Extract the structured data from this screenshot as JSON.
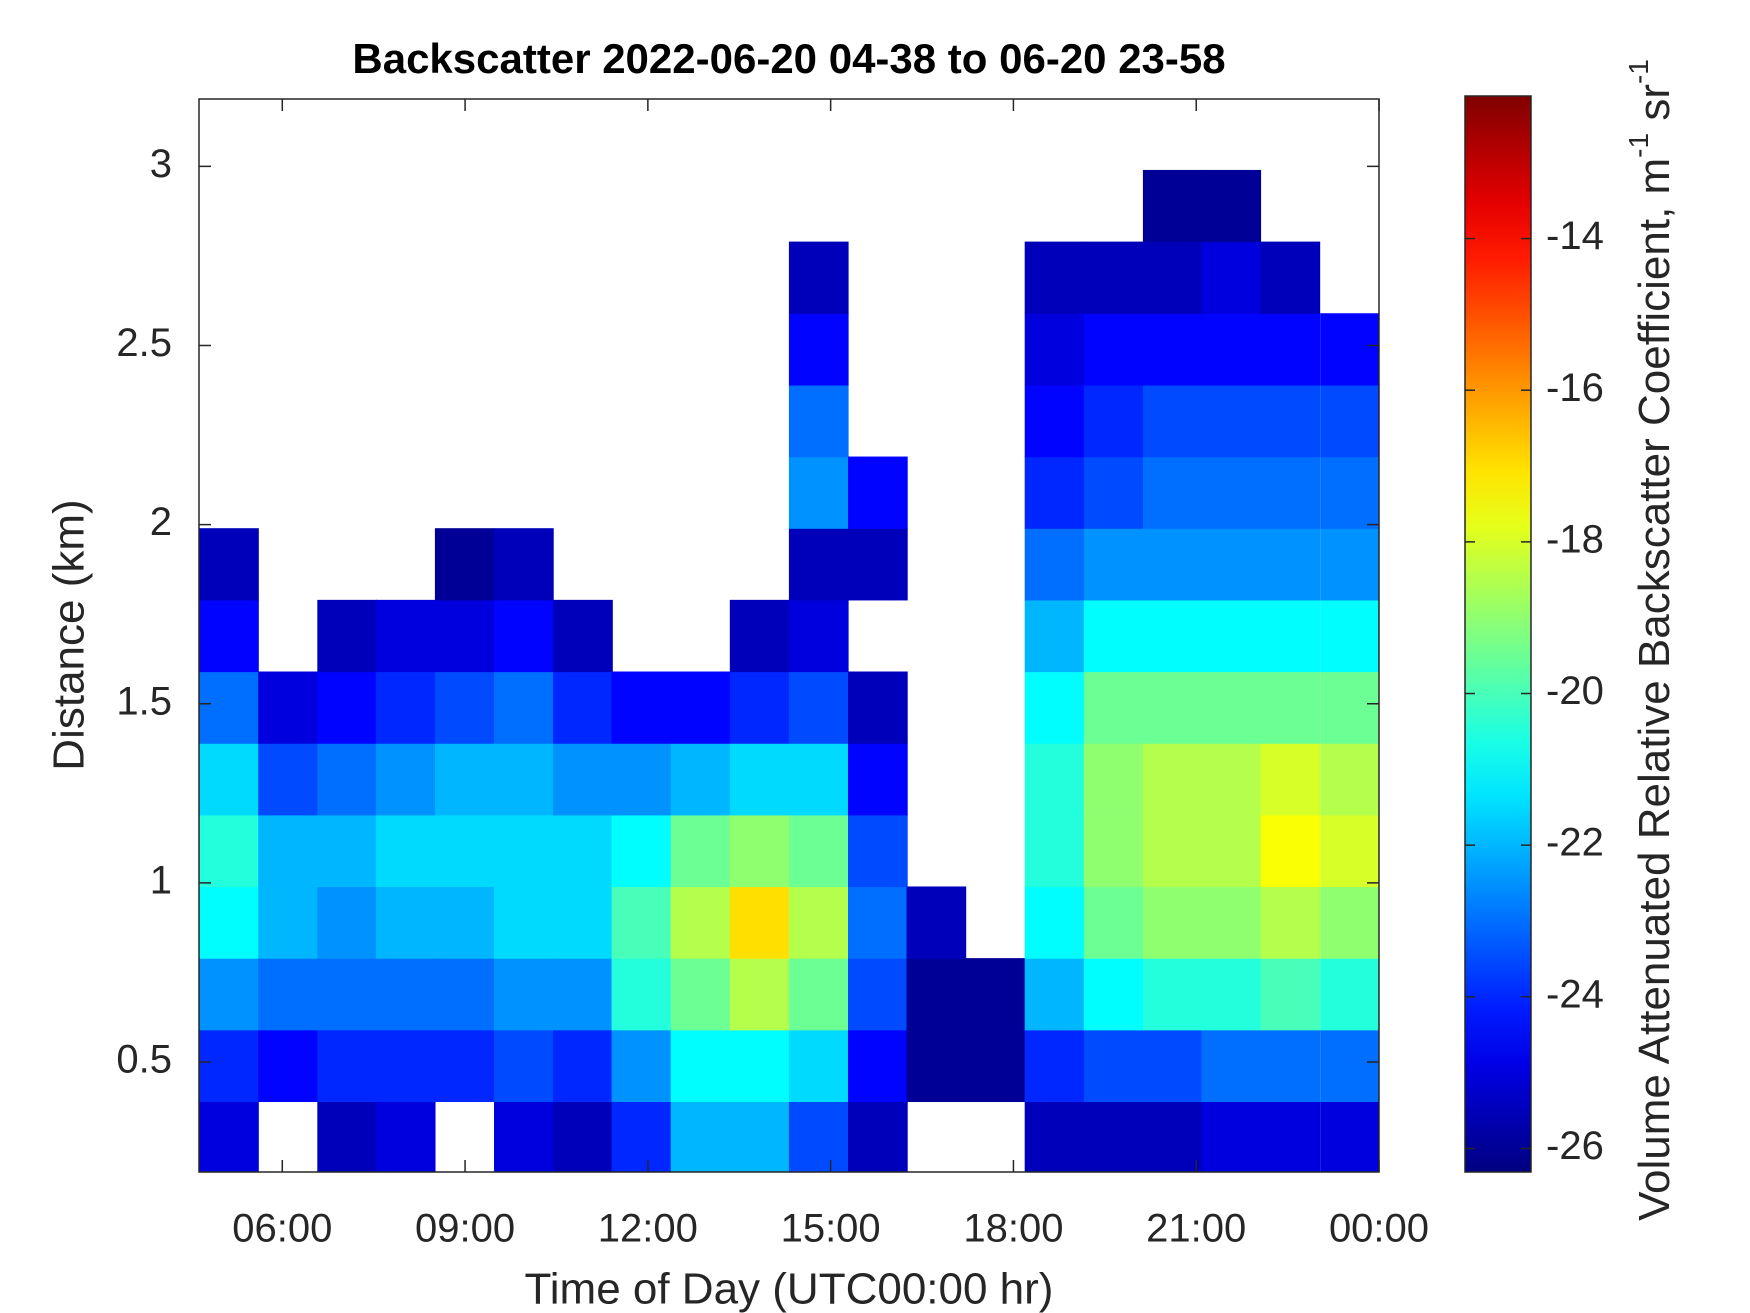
{
  "chart_data": {
    "type": "heatmap",
    "title": "Backscatter 2022-06-20 04-38 to 06-20 23-58",
    "x_label": "Time of Day (UTC00:00 hr)",
    "y_label": "Distance (km)",
    "colorbar_label": [
      "Volume Attenuated Relative Backscatter Coefficient, m",
      "-1",
      " sr",
      "-1"
    ],
    "colormap": "jet",
    "x": [
      5.12,
      6.09,
      7.06,
      8.02,
      8.99,
      9.96,
      10.93,
      11.89,
      12.86,
      13.83,
      14.8,
      15.77,
      16.73,
      17.7,
      18.67,
      19.64,
      20.61,
      21.57,
      22.54,
      23.52
    ],
    "y": [
      0.29,
      0.49,
      0.69,
      0.89,
      1.09,
      1.29,
      1.49,
      1.69,
      1.89,
      2.09,
      2.29,
      2.49,
      2.69,
      2.89,
      3.09
    ],
    "z": [
      [
        -25,
        -24,
        -22.5,
        -21,
        -20.5,
        -21.5,
        -23,
        -24.5,
        -25.5,
        null,
        null,
        null,
        null,
        null,
        null
      ],
      [
        null,
        -24.5,
        -23,
        -22,
        -22,
        -23.5,
        -25,
        null,
        null,
        null,
        null,
        null,
        null,
        null,
        null
      ],
      [
        -25.5,
        -24,
        -23,
        -22.5,
        -22,
        -23,
        -24.5,
        -25.5,
        null,
        null,
        null,
        null,
        null,
        null,
        null
      ],
      [
        -25,
        -24,
        -23,
        -22,
        -21.5,
        -22.5,
        -24,
        -25,
        null,
        null,
        null,
        null,
        null,
        null,
        null
      ],
      [
        null,
        -24,
        -23,
        -22,
        -21.5,
        -22,
        -23.5,
        -25,
        -26,
        null,
        null,
        null,
        null,
        null,
        null
      ],
      [
        -25,
        -23.5,
        -22.5,
        -21.5,
        -21.5,
        -22,
        -23,
        -24.5,
        -25.5,
        null,
        null,
        null,
        null,
        null,
        null
      ],
      [
        -25.5,
        -24,
        -22.5,
        -21.5,
        -21.5,
        -22.5,
        -24,
        -25.5,
        null,
        null,
        null,
        null,
        null,
        null,
        null
      ],
      [
        -24,
        -22.5,
        -20.5,
        -20,
        -21,
        -22.5,
        -24.5,
        null,
        null,
        null,
        null,
        null,
        null,
        null,
        null
      ],
      [
        -22,
        -21,
        -19.5,
        -18.5,
        -19.5,
        -22,
        -24.5,
        null,
        null,
        null,
        null,
        null,
        null,
        null,
        null
      ],
      [
        -22,
        -21,
        -18.5,
        -17,
        -19,
        -21.5,
        -24,
        -25.5,
        null,
        null,
        null,
        null,
        null,
        null,
        null
      ],
      [
        -23.5,
        -21.5,
        -19.5,
        -18.5,
        -19.5,
        -21.5,
        -23.5,
        -25,
        -25.5,
        -22.5,
        -23,
        -24.5,
        -25.5,
        null,
        null
      ],
      [
        -25.5,
        -24.5,
        -23.5,
        -23,
        -23.5,
        -24.5,
        -25.5,
        null,
        -25.5,
        -24.5,
        null,
        null,
        null,
        null,
        null
      ],
      [
        null,
        -26,
        -26,
        -25.5,
        null,
        null,
        null,
        null,
        null,
        null,
        null,
        null,
        null,
        null,
        null
      ],
      [
        null,
        -26,
        -26,
        null,
        null,
        null,
        null,
        null,
        null,
        null,
        null,
        null,
        null,
        null,
        null
      ],
      [
        -25.5,
        -24,
        -22,
        -21,
        -20.5,
        -20.5,
        -21,
        -22,
        -23,
        -24,
        -24.5,
        -25,
        -25.5,
        null,
        null
      ],
      [
        -25.5,
        -23.5,
        -21,
        -19.5,
        -19,
        -19,
        -19.5,
        -21,
        -22.5,
        -23.5,
        -24,
        -24.5,
        -25.5,
        null,
        null
      ],
      [
        -25.5,
        -23.5,
        -20.5,
        -19,
        -18.5,
        -18.5,
        -19.5,
        -21,
        -22.5,
        -23,
        -23.5,
        -24.5,
        -25.5,
        -26,
        null
      ],
      [
        -25,
        -23,
        -20.5,
        -19,
        -18.5,
        -18.5,
        -19.5,
        -21,
        -22.5,
        -23,
        -23.5,
        -24.5,
        -25,
        -26,
        null
      ],
      [
        -25,
        -23,
        -20,
        -18.5,
        -17.5,
        -18,
        -19.5,
        -21,
        -22.5,
        -23,
        -23.5,
        -24.5,
        -25.5,
        null,
        null
      ],
      [
        -25,
        -23,
        -20.5,
        -19,
        -18,
        -18.5,
        -19.5,
        -21,
        -22.5,
        -23,
        -23.5,
        -24.5,
        null,
        null,
        null
      ]
    ],
    "xlim": [
      4.633,
      24
    ],
    "ylim": [
      0.193,
      3.188
    ],
    "clim": [
      -26.31,
      -12.12
    ],
    "xticks": [
      {
        "value": 6,
        "label": "06:00"
      },
      {
        "value": 9,
        "label": "09:00"
      },
      {
        "value": 12,
        "label": "12:00"
      },
      {
        "value": 15,
        "label": "15:00"
      },
      {
        "value": 18,
        "label": "18:00"
      },
      {
        "value": 21,
        "label": "21:00"
      },
      {
        "value": 24,
        "label": "00:00"
      }
    ],
    "yticks": [
      0.5,
      1,
      1.5,
      2,
      2.5,
      3
    ],
    "cticks": [
      -26,
      -24,
      -22,
      -20,
      -18,
      -16,
      -14
    ]
  }
}
